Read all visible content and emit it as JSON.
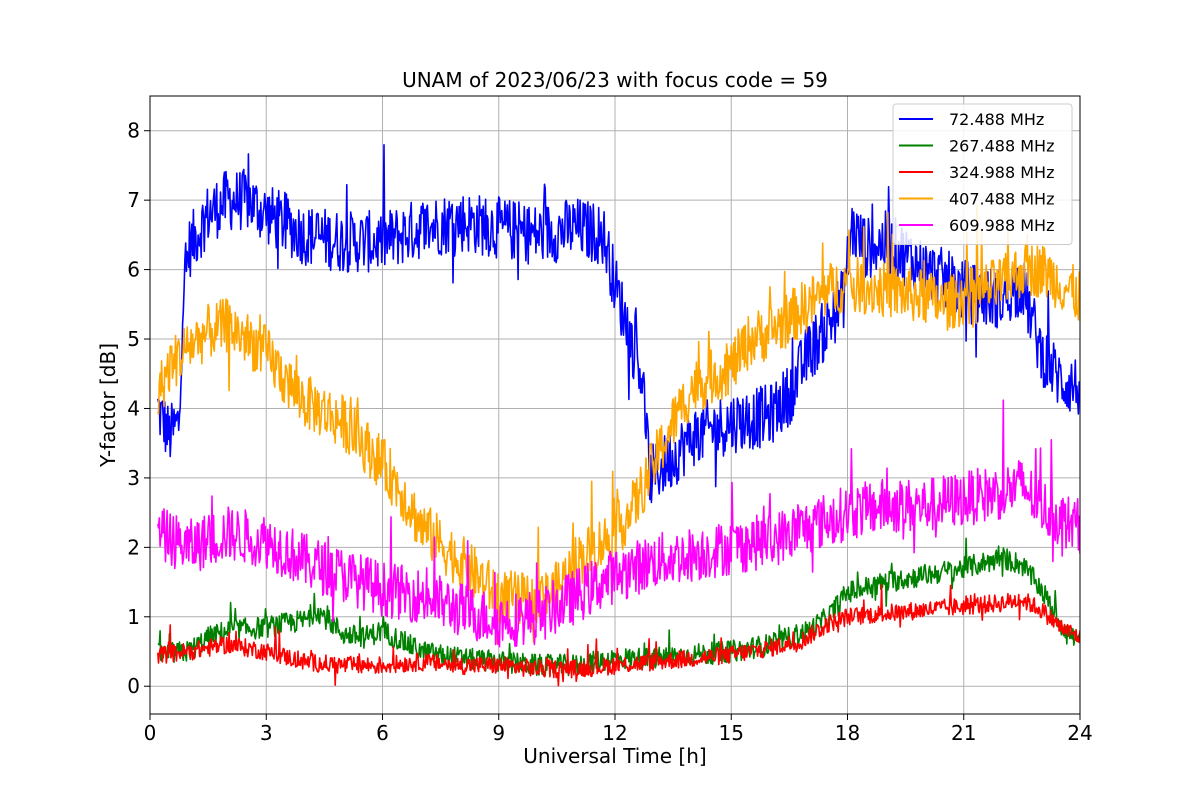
{
  "chart_data": {
    "type": "line",
    "title": "UNAM of 2023/06/23 with focus code = 59",
    "xlabel": "Universal Time [h]",
    "ylabel": "Y-factor [dB]",
    "xlim": [
      0,
      24
    ],
    "ylim": [
      -0.4,
      8.5
    ],
    "xticks": [
      0,
      3,
      6,
      9,
      12,
      15,
      18,
      21,
      24
    ],
    "xtick_labels": [
      "0",
      "3",
      "6",
      "9",
      "12",
      "15",
      "18",
      "21",
      "24"
    ],
    "yticks": [
      0,
      1,
      2,
      3,
      4,
      5,
      6,
      7,
      8
    ],
    "ytick_labels": [
      "0",
      "1",
      "2",
      "3",
      "4",
      "5",
      "6",
      "7",
      "8"
    ],
    "grid": true,
    "legend_position": "top-right",
    "x_step_hours": 0.02,
    "series": [
      {
        "name": " 72.488 MHz",
        "color": "#0000ff",
        "x": [
          0.2,
          0.5,
          0.75,
          0.85,
          1.0,
          1.5,
          2.0,
          2.5,
          3.0,
          4.0,
          5.0,
          6.0,
          7.0,
          8.0,
          9.0,
          10.0,
          11.0,
          11.7,
          12.0,
          12.4,
          12.7,
          12.9,
          13.5,
          14.0,
          15.0,
          16.0,
          16.5,
          17.0,
          17.5,
          17.9,
          18.1,
          18.5,
          19.0,
          20.0,
          21.0,
          21.5,
          22.0,
          22.5,
          23.0,
          23.5,
          24.0
        ],
        "y": [
          4.0,
          3.6,
          3.8,
          5.6,
          6.3,
          6.8,
          7.0,
          7.0,
          6.8,
          6.5,
          6.4,
          6.4,
          6.6,
          6.7,
          6.6,
          6.5,
          6.6,
          6.5,
          5.8,
          5.0,
          4.5,
          3.0,
          3.3,
          3.6,
          3.8,
          3.9,
          4.2,
          4.8,
          5.2,
          5.6,
          6.6,
          6.3,
          6.4,
          6.0,
          5.7,
          5.6,
          5.6,
          5.8,
          4.8,
          4.4,
          4.3
        ],
        "noise": 0.45
      },
      {
        "name": "267.488 MHz",
        "color": "#008000",
        "x": [
          0.2,
          1.0,
          1.5,
          2.0,
          3.0,
          4.0,
          4.3,
          5.0,
          5.5,
          6.0,
          7.0,
          8.0,
          9.0,
          10.0,
          11.0,
          12.0,
          13.0,
          14.0,
          15.0,
          16.0,
          17.0,
          17.5,
          18.0,
          19.0,
          20.0,
          21.0,
          22.0,
          22.5,
          23.0,
          23.5,
          24.0
        ],
        "y": [
          0.45,
          0.5,
          0.7,
          0.8,
          0.85,
          0.95,
          1.1,
          0.75,
          0.7,
          0.8,
          0.5,
          0.4,
          0.35,
          0.3,
          0.3,
          0.4,
          0.4,
          0.45,
          0.5,
          0.6,
          0.8,
          1.0,
          1.35,
          1.5,
          1.6,
          1.7,
          1.85,
          1.75,
          1.4,
          0.9,
          0.6
        ],
        "noise": 0.16
      },
      {
        "name": "324.988 MHz",
        "color": "#ff0000",
        "x": [
          0.2,
          1.0,
          2.0,
          3.0,
          4.0,
          5.0,
          6.0,
          7.0,
          8.0,
          9.0,
          10.0,
          11.0,
          12.0,
          13.0,
          14.0,
          15.0,
          16.0,
          16.8,
          17.5,
          18.0,
          19.0,
          20.0,
          21.0,
          22.0,
          22.5,
          23.0,
          23.5,
          24.0
        ],
        "y": [
          0.45,
          0.5,
          0.6,
          0.5,
          0.35,
          0.3,
          0.3,
          0.35,
          0.3,
          0.3,
          0.25,
          0.25,
          0.3,
          0.35,
          0.4,
          0.45,
          0.55,
          0.65,
          0.9,
          1.0,
          1.05,
          1.1,
          1.15,
          1.2,
          1.25,
          1.1,
          0.85,
          0.7
        ],
        "noise": 0.13
      },
      {
        "name": "407.488 MHz",
        "color": "#ffa500",
        "x": [
          0.2,
          0.5,
          1.0,
          1.5,
          2.0,
          2.5,
          3.0,
          3.5,
          4.0,
          5.0,
          6.0,
          6.5,
          7.0,
          8.0,
          9.0,
          10.0,
          10.5,
          11.0,
          12.0,
          12.5,
          13.0,
          13.5,
          14.0,
          15.0,
          15.5,
          16.0,
          16.5,
          17.0,
          17.5,
          18.0,
          19.0,
          20.0,
          20.5,
          21.0,
          22.0,
          22.5,
          23.0,
          23.5,
          24.0
        ],
        "y": [
          4.2,
          4.6,
          4.9,
          5.1,
          5.2,
          5.0,
          4.8,
          4.4,
          4.1,
          3.8,
          3.2,
          2.8,
          2.3,
          1.8,
          1.3,
          1.2,
          1.4,
          1.8,
          2.2,
          2.6,
          3.2,
          3.8,
          4.3,
          4.6,
          5.0,
          5.1,
          5.3,
          5.5,
          5.7,
          5.8,
          5.7,
          5.6,
          5.5,
          5.6,
          5.8,
          6.0,
          6.0,
          5.8,
          5.6
        ],
        "noise": 0.4
      },
      {
        "name": "609.988 MHz",
        "color": "#ff00ff",
        "x": [
          0.2,
          1.0,
          2.0,
          3.0,
          4.0,
          5.0,
          6.0,
          7.0,
          8.0,
          9.0,
          10.0,
          11.0,
          12.0,
          13.0,
          14.0,
          15.0,
          16.0,
          17.0,
          18.0,
          19.0,
          20.0,
          21.0,
          22.0,
          22.5,
          23.0,
          23.5,
          24.0
        ],
        "y": [
          2.2,
          2.0,
          2.2,
          2.1,
          1.8,
          1.6,
          1.4,
          1.3,
          1.1,
          0.95,
          1.0,
          1.3,
          1.6,
          1.8,
          1.9,
          2.0,
          2.1,
          2.3,
          2.5,
          2.6,
          2.6,
          2.7,
          2.8,
          2.9,
          2.6,
          2.4,
          2.3
        ],
        "noise": 0.4
      }
    ]
  }
}
